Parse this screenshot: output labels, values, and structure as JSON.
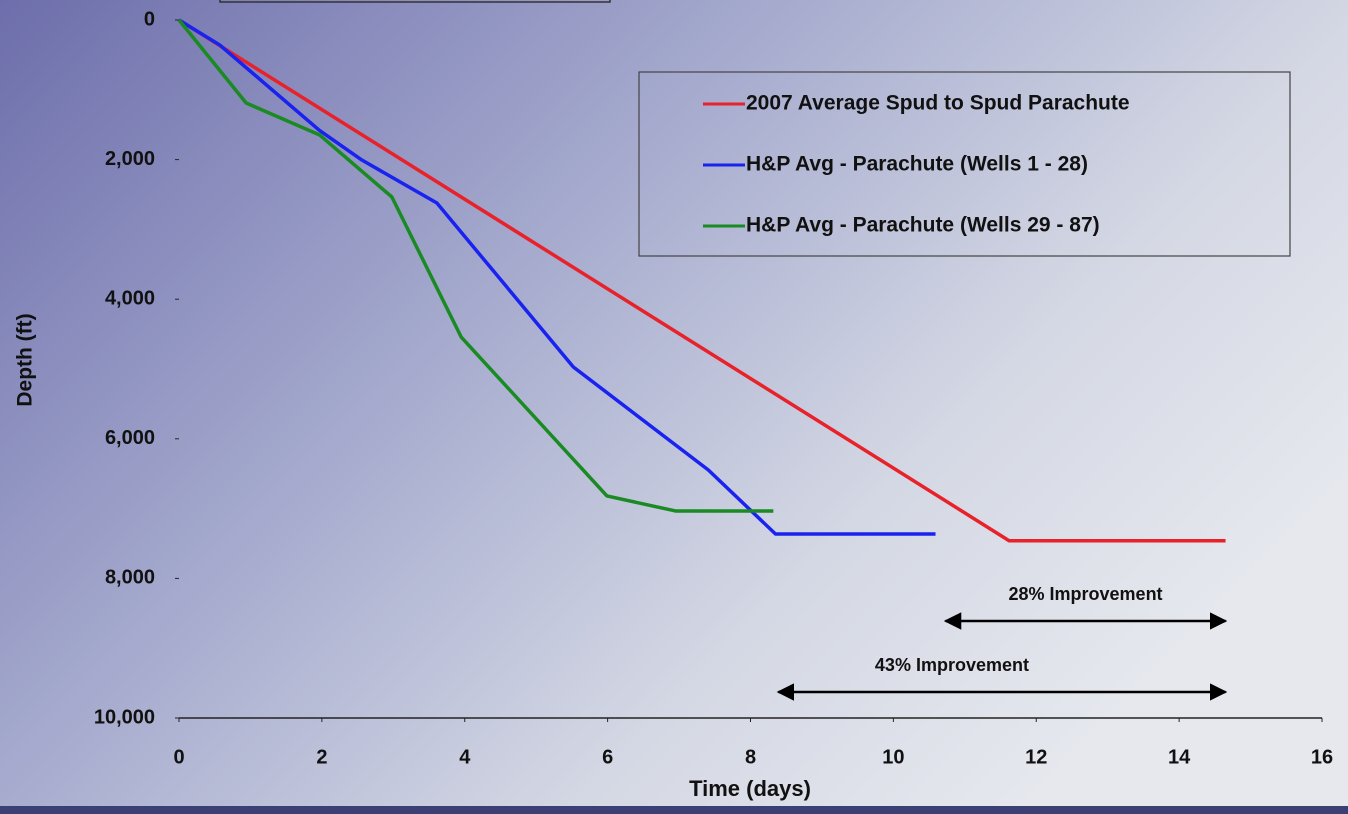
{
  "chart_data": {
    "type": "line",
    "xlabel": "Time (days)",
    "ylabel": "Depth (ft)",
    "xlim": [
      0,
      16
    ],
    "xticks": [
      0,
      2,
      4,
      6,
      8,
      10,
      12,
      14,
      16
    ],
    "ylim": [
      0,
      10000
    ],
    "y_inverted": true,
    "yticks": [
      0,
      {
        "value": 2000,
        "label": "2,000"
      },
      {
        "value": 4000,
        "label": "4,000"
      },
      {
        "value": 6000,
        "label": "6,000"
      },
      {
        "value": 8000,
        "label": "8,000"
      },
      {
        "value": 10000,
        "label": "10,000"
      }
    ],
    "legend": "upper right",
    "series": [
      {
        "name": "2007 Average Spud to Spud Parachute",
        "color": "#e8222a",
        "x": [
          0,
          11.62,
          14.65
        ],
        "values": [
          0,
          7460,
          7460
        ]
      },
      {
        "name": "H&P Avg - Parachute (Wells 1 - 28)",
        "color": "#1a22f0",
        "x": [
          0,
          0.57,
          1.96,
          2.56,
          3.61,
          5.52,
          7.41,
          8.35,
          10.59
        ],
        "values": [
          0,
          358,
          1576,
          2006,
          2622,
          4971,
          6447,
          7364,
          7364
        ]
      },
      {
        "name": "H&P Avg - Parachute (Wells 29 - 87)",
        "color": "#1a8a22",
        "x": [
          0,
          0.94,
          1.97,
          2.98,
          3.95,
          5.99,
          6.95,
          8.32
        ],
        "values": [
          0,
          1189,
          1648,
          2536,
          4542,
          6819,
          7034,
          7034
        ]
      }
    ],
    "annotations": [
      {
        "text": "28% Improvement",
        "x": [
          10.73,
          14.65
        ]
      },
      {
        "text": "43% Improvement",
        "x": [
          8.39,
          14.65
        ]
      }
    ]
  }
}
